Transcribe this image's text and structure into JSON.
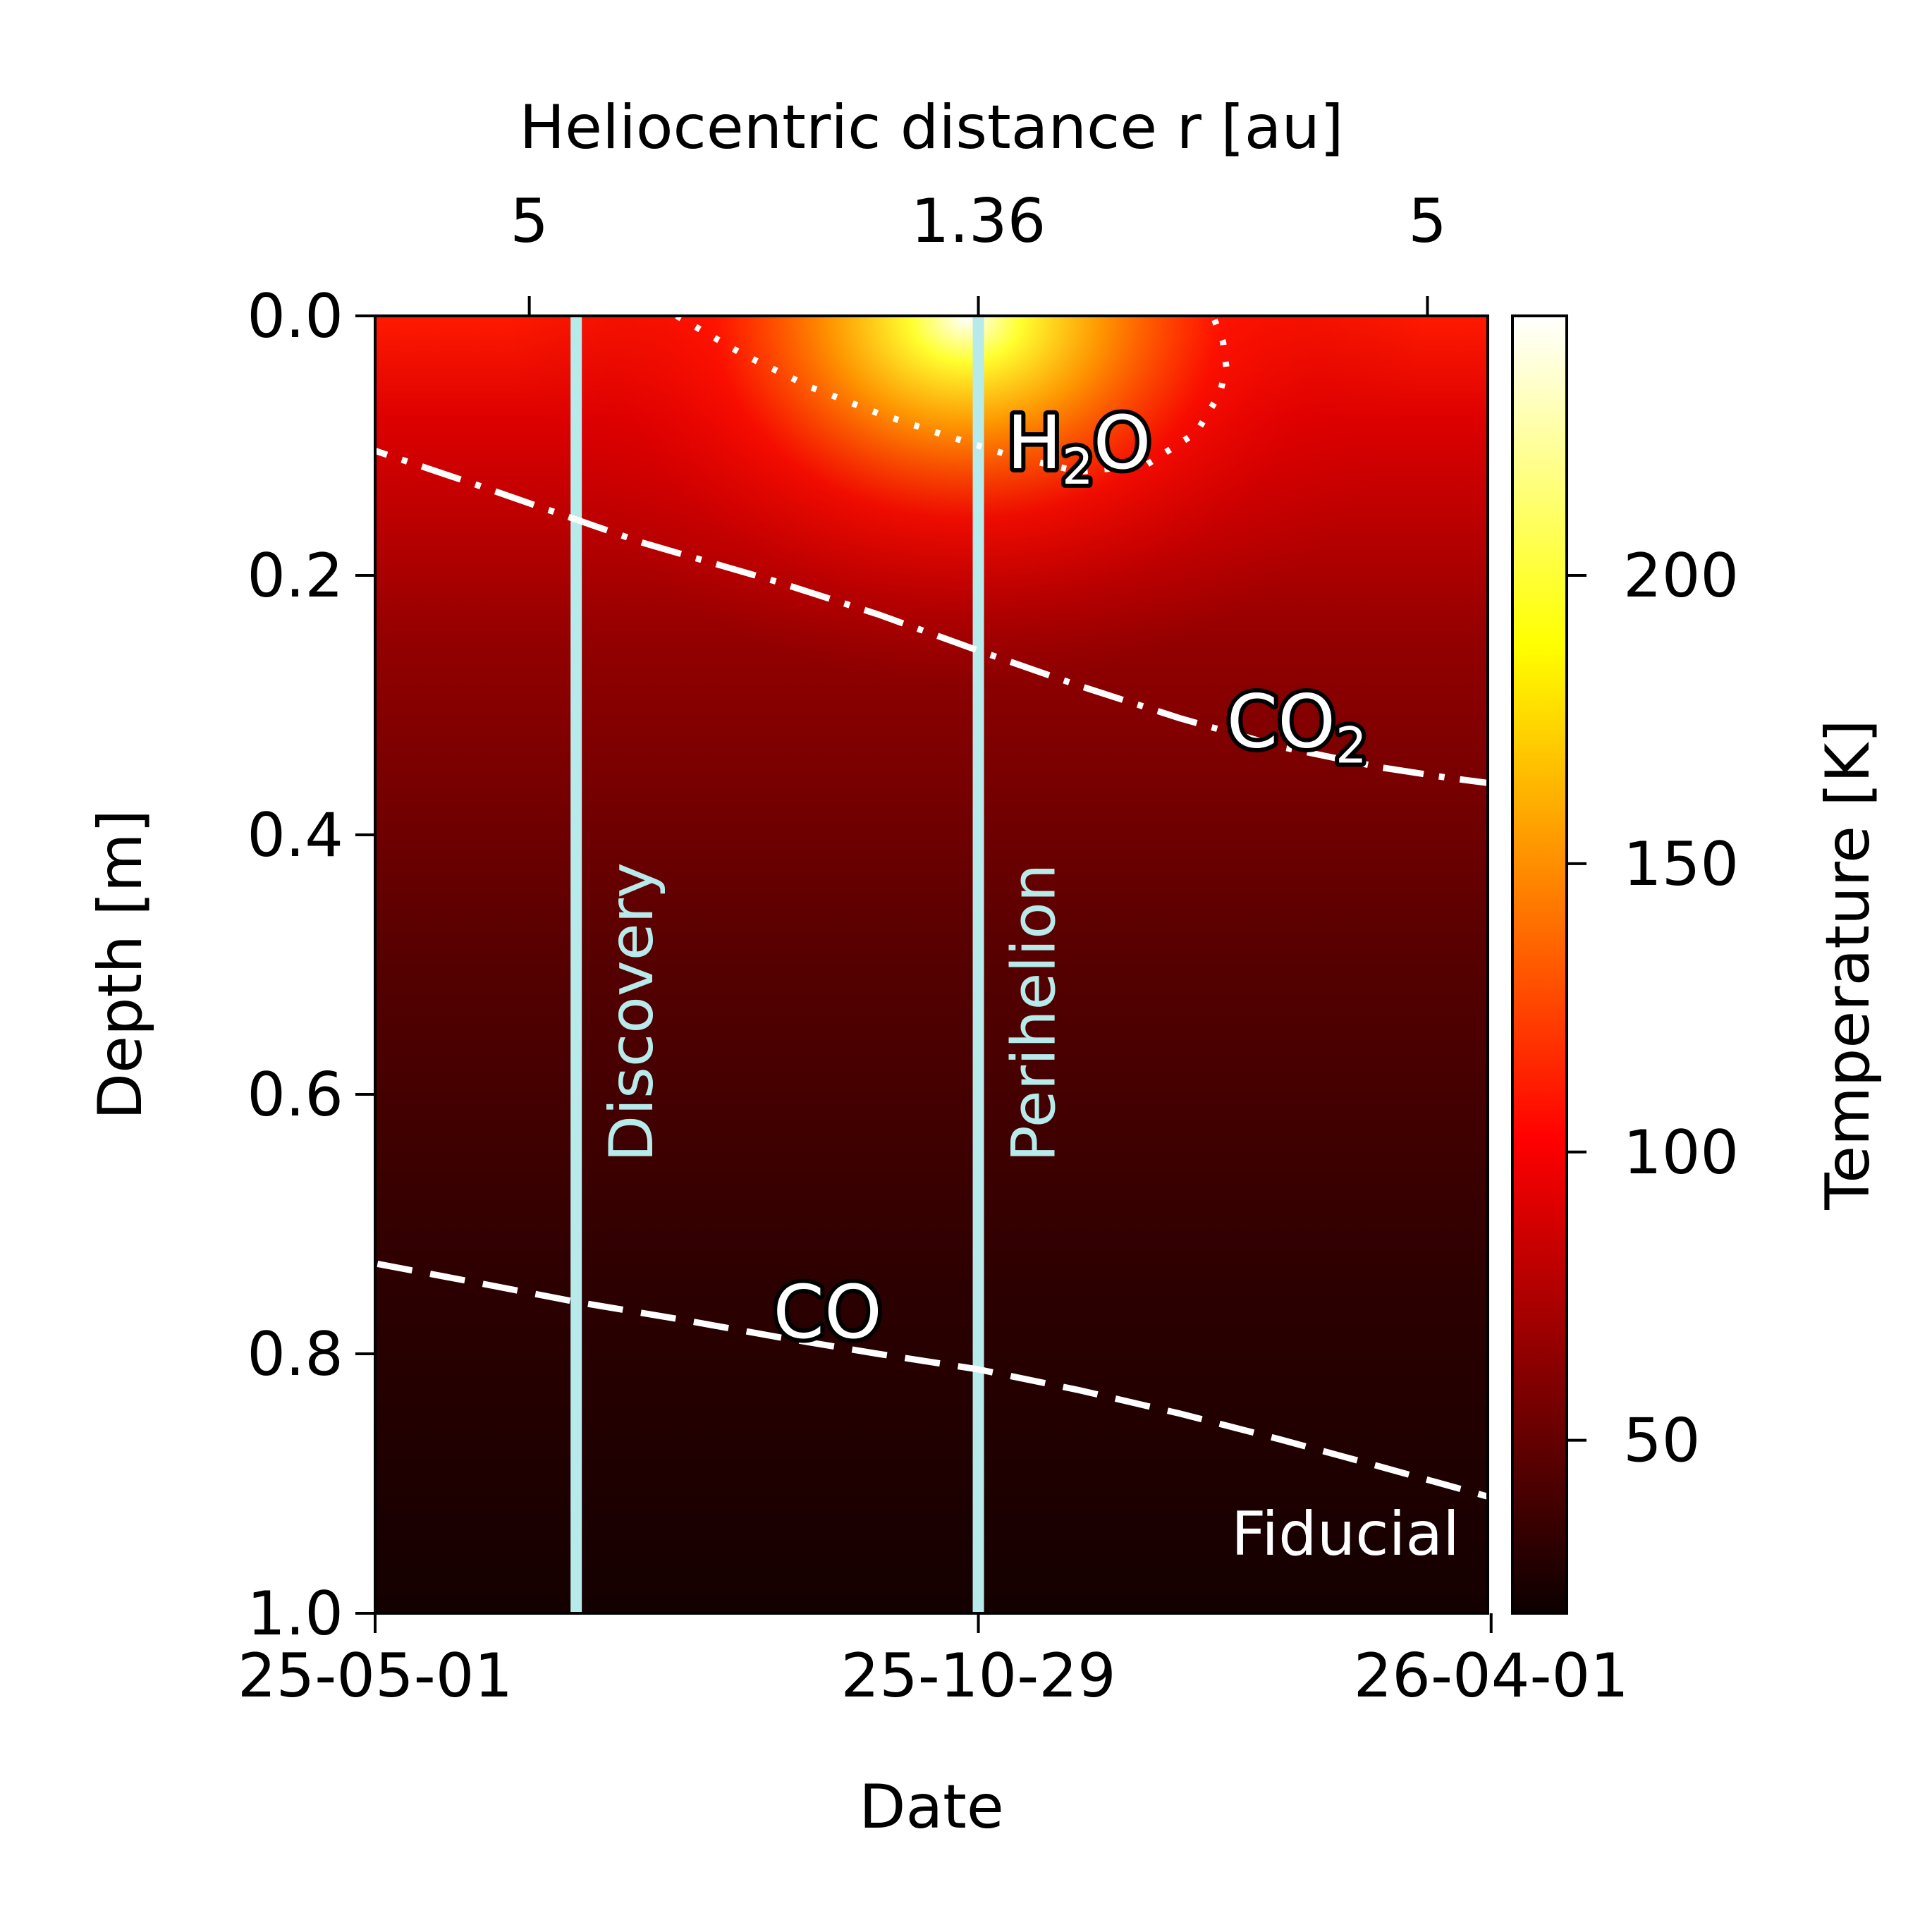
{
  "chart_data": {
    "type": "heatmap",
    "title": "",
    "xlabel": "Date",
    "ylabel": "Depth [m]",
    "top_xlabel": "Heliocentric distance r [au]",
    "colorbar_label": "Temperature [K]",
    "panel_label": "Fiducial",
    "x_range_days": [
      -180,
      152
    ],
    "y_range": [
      0.0,
      1.0
    ],
    "colorbar_range": [
      20,
      245
    ],
    "colormap": "hot",
    "bottom_ticks": [
      {
        "day": -180,
        "label": "25-05-01"
      },
      {
        "day": 0,
        "label": "25-10-29"
      },
      {
        "day": 153,
        "label": "26-04-01"
      }
    ],
    "top_ticks": [
      {
        "day": -134,
        "label": "5"
      },
      {
        "day": 0,
        "label": "1.36"
      },
      {
        "day": 134,
        "label": "5"
      }
    ],
    "y_ticks": [
      {
        "value": 0.0,
        "label": "0.0"
      },
      {
        "value": 0.2,
        "label": "0.2"
      },
      {
        "value": 0.4,
        "label": "0.4"
      },
      {
        "value": 0.6,
        "label": "0.6"
      },
      {
        "value": 0.8,
        "label": "0.8"
      },
      {
        "value": 1.0,
        "label": "1.0"
      }
    ],
    "colorbar_ticks": [
      {
        "value": 50,
        "label": "50"
      },
      {
        "value": 100,
        "label": "100"
      },
      {
        "value": 150,
        "label": "150"
      },
      {
        "value": 200,
        "label": "200"
      }
    ],
    "vertical_lines": [
      {
        "day": -120,
        "label": "Discovery",
        "color": "#b7eaea"
      },
      {
        "day": 0,
        "label": "Perihelion",
        "color": "#b7eaea"
      }
    ],
    "series": [
      {
        "name": "H2O",
        "label_main": "H",
        "label_sub": "2",
        "label_tail": "O",
        "style": "dotted",
        "label_at": {
          "day": 30,
          "depth": 0.1
        },
        "x": [
          -90,
          -70,
          -50,
          -30,
          -10,
          0,
          10,
          30,
          50,
          65,
          72,
          74,
          73,
          70
        ],
        "y": [
          0.0,
          0.03,
          0.055,
          0.075,
          0.092,
          0.1,
          0.108,
          0.12,
          0.115,
          0.09,
          0.06,
          0.04,
          0.02,
          0.0
        ]
      },
      {
        "name": "CO2",
        "label_main": "CO",
        "label_sub": "2",
        "label_tail": "",
        "style": "dashdot",
        "label_at": {
          "day": 95,
          "depth": 0.315
        },
        "x": [
          -188,
          -150,
          -120,
          -100,
          -60,
          -30,
          0,
          30,
          60,
          90,
          120,
          140,
          152
        ],
        "y": [
          0.097,
          0.13,
          0.157,
          0.175,
          0.205,
          0.23,
          0.258,
          0.285,
          0.31,
          0.332,
          0.348,
          0.356,
          0.36
        ]
      },
      {
        "name": "CO",
        "label_main": "CO",
        "label_sub": "",
        "label_tail": "",
        "style": "dashed",
        "label_at": {
          "day": -45,
          "depth": 0.77
        },
        "x": [
          -195,
          -150,
          -120,
          -90,
          -60,
          -30,
          0,
          30,
          60,
          90,
          120,
          152
        ],
        "y": [
          0.723,
          0.745,
          0.76,
          0.773,
          0.787,
          0.8,
          0.812,
          0.828,
          0.846,
          0.866,
          0.887,
          0.91
        ]
      }
    ]
  }
}
